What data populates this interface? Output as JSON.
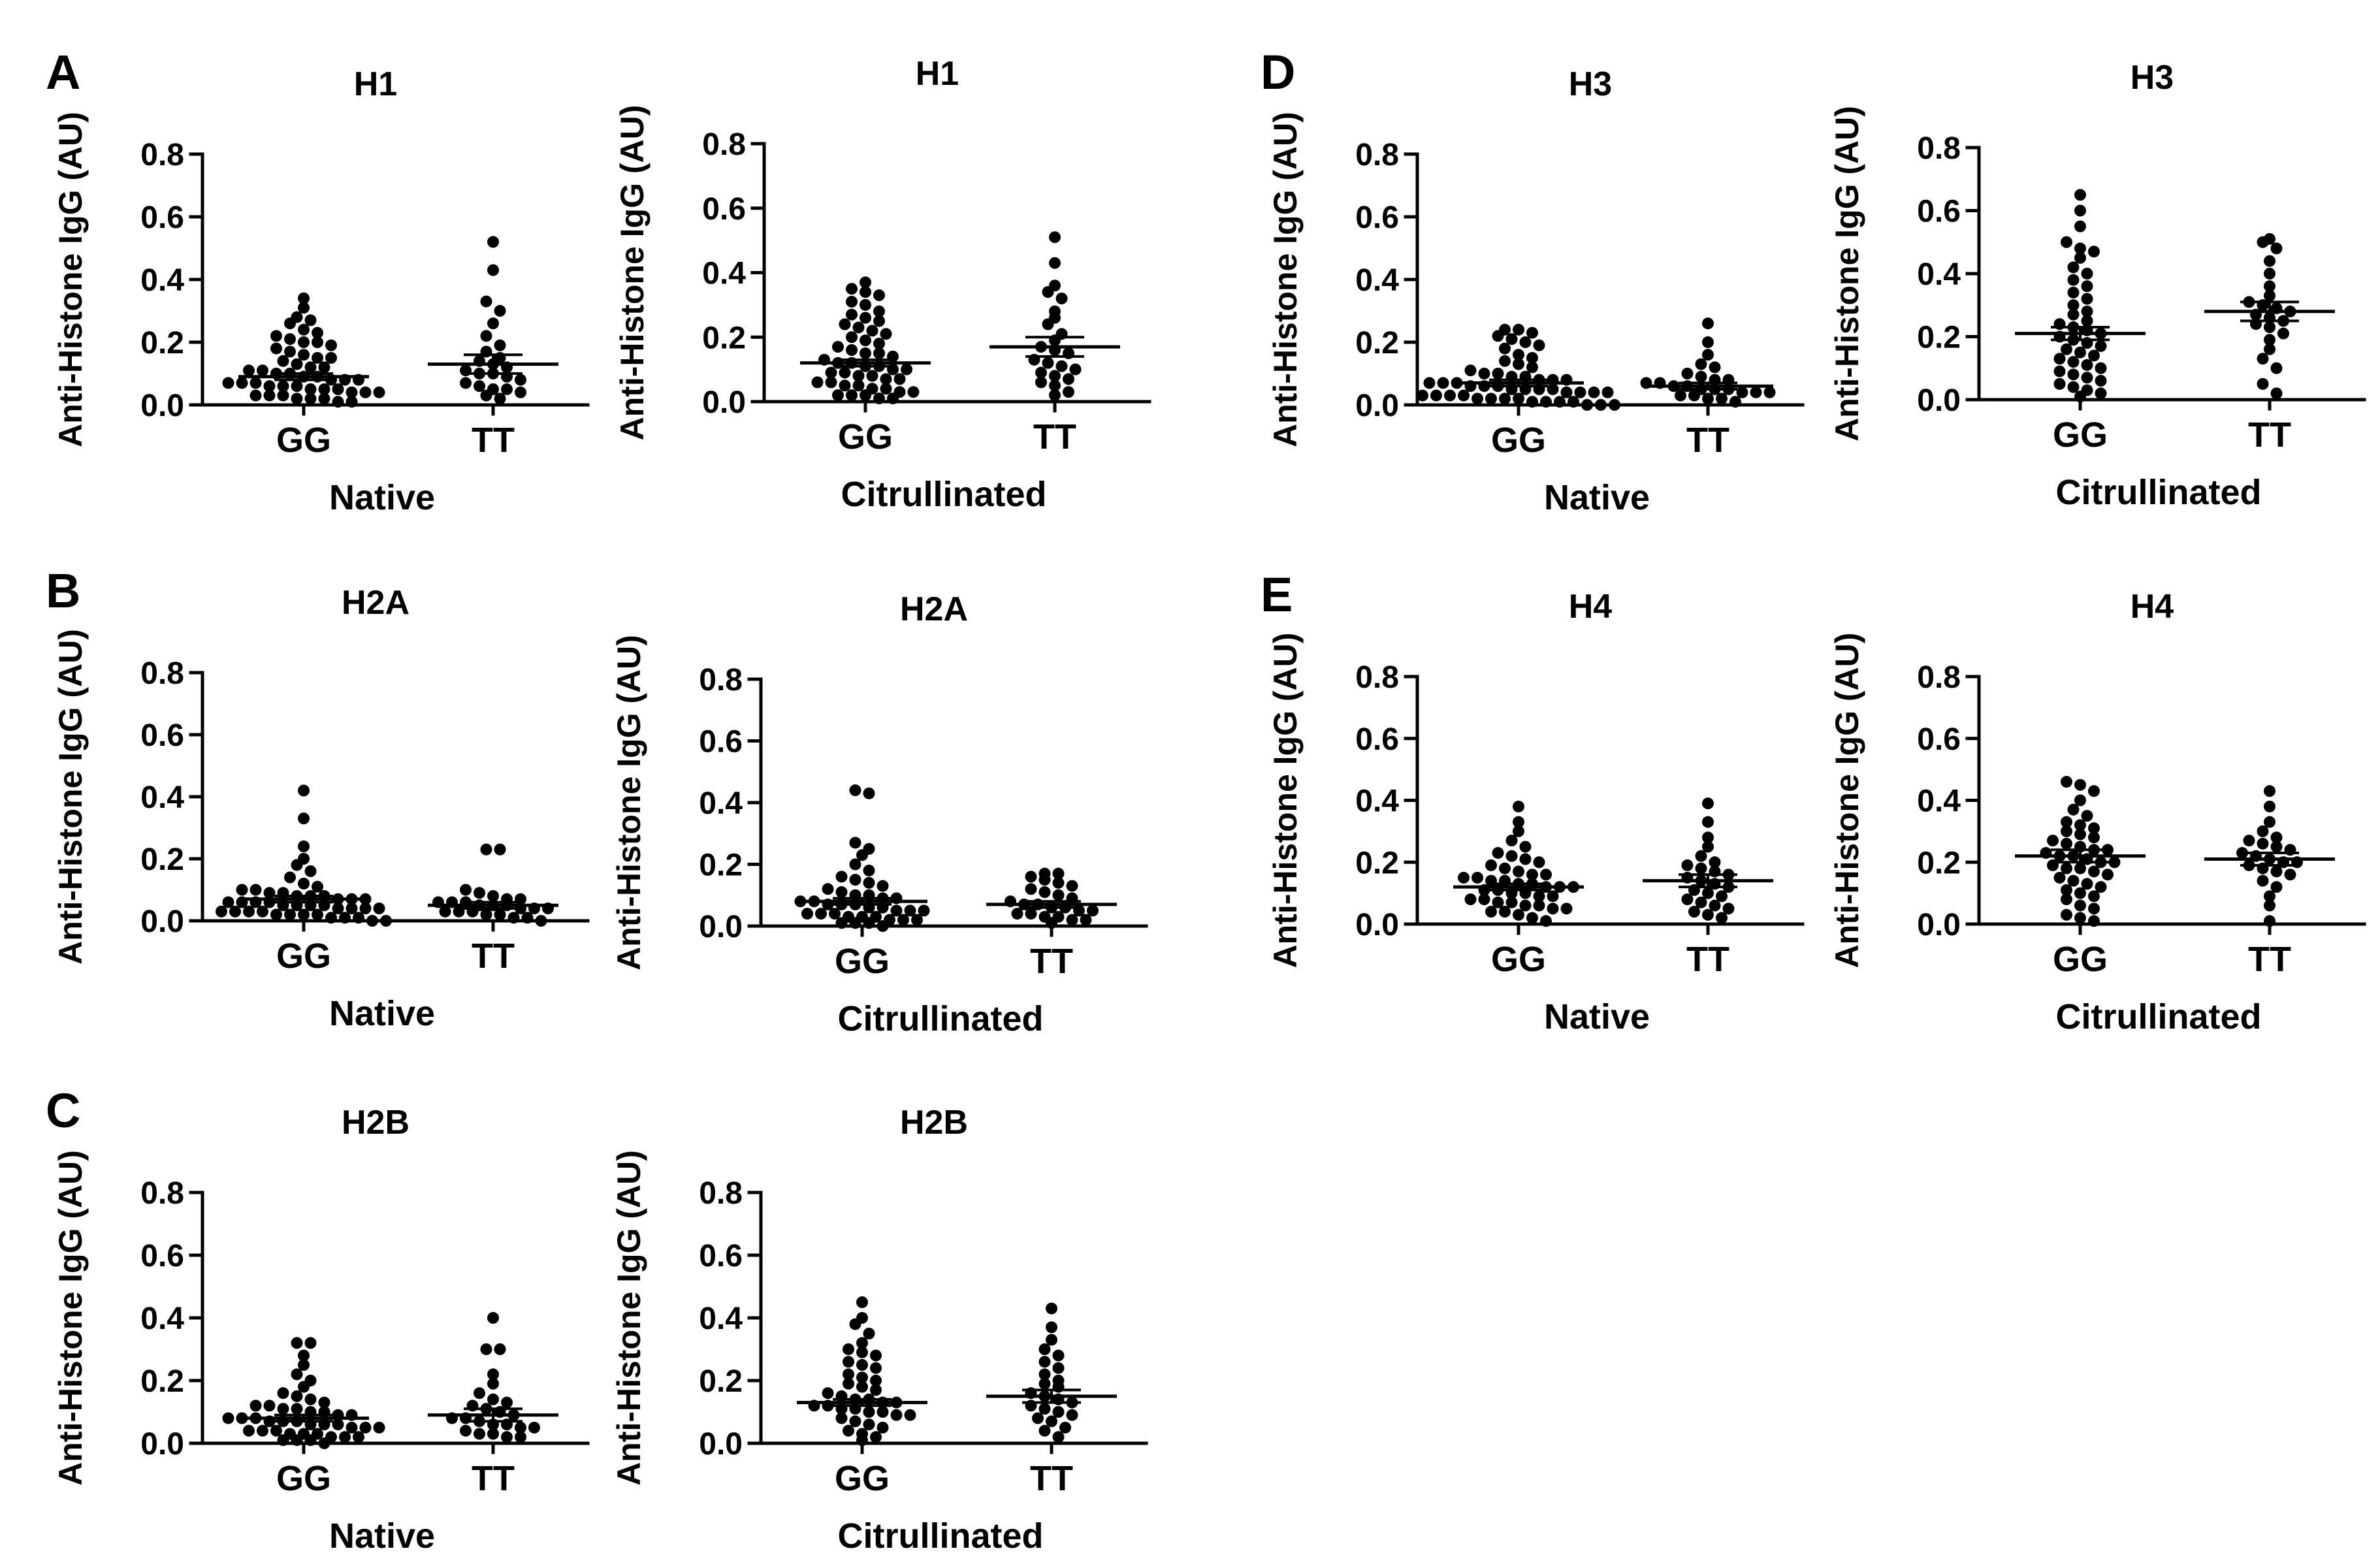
{
  "chart_data": [
    {
      "panel": "A",
      "type": "scatter",
      "title": "H1",
      "xlabel": "Native",
      "ylabel": "Anti-Histone IgG (AU)",
      "ylim": [
        0,
        0.8
      ],
      "yticks": [
        "0.0",
        "0.2",
        "0.4",
        "0.6",
        "0.8"
      ],
      "categories": [
        "GG",
        "TT"
      ],
      "series": [
        {
          "category": "GG",
          "mean": 0.09,
          "sem": 0.01,
          "values": [
            0.34,
            0.31,
            0.28,
            0.27,
            0.26,
            0.24,
            0.23,
            0.22,
            0.21,
            0.2,
            0.2,
            0.19,
            0.18,
            0.17,
            0.16,
            0.15,
            0.15,
            0.14,
            0.13,
            0.12,
            0.12,
            0.11,
            0.11,
            0.1,
            0.1,
            0.09,
            0.09,
            0.08,
            0.08,
            0.08,
            0.07,
            0.07,
            0.07,
            0.06,
            0.06,
            0.06,
            0.05,
            0.05,
            0.05,
            0.04,
            0.04,
            0.04,
            0.03,
            0.03,
            0.03,
            0.02,
            0.02,
            0.02,
            0.01,
            0.01
          ]
        },
        {
          "category": "TT",
          "mean": 0.13,
          "sem": 0.03,
          "values": [
            0.52,
            0.43,
            0.33,
            0.3,
            0.26,
            0.22,
            0.19,
            0.17,
            0.15,
            0.14,
            0.13,
            0.12,
            0.11,
            0.1,
            0.1,
            0.09,
            0.08,
            0.07,
            0.06,
            0.05,
            0.05,
            0.04,
            0.03,
            0.02
          ]
        }
      ]
    },
    {
      "panel": "",
      "type": "scatter",
      "title": "H1",
      "xlabel": "Citrullinated",
      "ylabel": "Anti-Histone IgG (AU)",
      "ylim": [
        0,
        0.8
      ],
      "yticks": [
        "0.0",
        "0.2",
        "0.4",
        "0.6",
        "0.8"
      ],
      "categories": [
        "GG",
        "TT"
      ],
      "series": [
        {
          "category": "GG",
          "mean": 0.12,
          "sem": 0.01,
          "values": [
            0.37,
            0.35,
            0.34,
            0.33,
            0.31,
            0.3,
            0.28,
            0.27,
            0.26,
            0.25,
            0.24,
            0.23,
            0.22,
            0.21,
            0.2,
            0.19,
            0.18,
            0.17,
            0.16,
            0.15,
            0.15,
            0.14,
            0.13,
            0.12,
            0.12,
            0.11,
            0.11,
            0.1,
            0.1,
            0.09,
            0.09,
            0.08,
            0.08,
            0.07,
            0.07,
            0.06,
            0.06,
            0.05,
            0.05,
            0.04,
            0.04,
            0.03,
            0.03,
            0.02,
            0.02,
            0.02,
            0.01,
            0.01
          ]
        },
        {
          "category": "TT",
          "mean": 0.17,
          "sem": 0.03,
          "values": [
            0.51,
            0.43,
            0.36,
            0.34,
            0.32,
            0.28,
            0.26,
            0.24,
            0.21,
            0.19,
            0.17,
            0.16,
            0.15,
            0.13,
            0.12,
            0.11,
            0.1,
            0.09,
            0.08,
            0.07,
            0.06,
            0.05,
            0.03,
            0.02
          ]
        }
      ]
    },
    {
      "panel": "D",
      "type": "scatter",
      "title": "H3",
      "xlabel": "Native",
      "ylabel": "Anti-Histone IgG (AU)",
      "ylim": [
        0,
        0.8
      ],
      "yticks": [
        "0.0",
        "0.2",
        "0.4",
        "0.6",
        "0.8"
      ],
      "categories": [
        "GG",
        "TT"
      ],
      "series": [
        {
          "category": "GG",
          "mean": 0.07,
          "sem": 0.01,
          "values": [
            0.24,
            0.24,
            0.23,
            0.22,
            0.21,
            0.2,
            0.19,
            0.18,
            0.16,
            0.15,
            0.14,
            0.13,
            0.12,
            0.11,
            0.1,
            0.1,
            0.09,
            0.09,
            0.08,
            0.08,
            0.08,
            0.07,
            0.07,
            0.07,
            0.06,
            0.06,
            0.06,
            0.05,
            0.05,
            0.05,
            0.05,
            0.04,
            0.04,
            0.04,
            0.04,
            0.03,
            0.03,
            0.03,
            0.03,
            0.02,
            0.02,
            0.02,
            0.02,
            0.01,
            0.01,
            0.01,
            0.01,
            0.0,
            0.0,
            0.0
          ]
        },
        {
          "category": "TT",
          "mean": 0.06,
          "sem": 0.01,
          "values": [
            0.26,
            0.2,
            0.16,
            0.13,
            0.12,
            0.1,
            0.09,
            0.08,
            0.08,
            0.07,
            0.07,
            0.06,
            0.06,
            0.05,
            0.05,
            0.05,
            0.04,
            0.04,
            0.04,
            0.03,
            0.03,
            0.02,
            0.02,
            0.01
          ]
        }
      ]
    },
    {
      "panel": "",
      "type": "scatter",
      "title": "H3",
      "xlabel": "Citrullinated",
      "ylabel": "Anti-Histone IgG (AU)",
      "ylim": [
        0,
        0.8
      ],
      "yticks": [
        "0.0",
        "0.2",
        "0.4",
        "0.6",
        "0.8"
      ],
      "categories": [
        "GG",
        "TT"
      ],
      "series": [
        {
          "category": "GG",
          "mean": 0.21,
          "sem": 0.02,
          "values": [
            0.65,
            0.6,
            0.55,
            0.5,
            0.48,
            0.47,
            0.45,
            0.42,
            0.4,
            0.38,
            0.36,
            0.34,
            0.32,
            0.3,
            0.28,
            0.27,
            0.25,
            0.24,
            0.23,
            0.22,
            0.21,
            0.2,
            0.19,
            0.18,
            0.17,
            0.16,
            0.15,
            0.14,
            0.13,
            0.12,
            0.11,
            0.1,
            0.09,
            0.08,
            0.07,
            0.06,
            0.05,
            0.04,
            0.03,
            0.02,
            0.01
          ]
        },
        {
          "category": "TT",
          "mean": 0.28,
          "sem": 0.03,
          "values": [
            0.51,
            0.5,
            0.48,
            0.44,
            0.4,
            0.36,
            0.33,
            0.31,
            0.3,
            0.29,
            0.28,
            0.27,
            0.26,
            0.25,
            0.24,
            0.23,
            0.21,
            0.19,
            0.16,
            0.13,
            0.1,
            0.05,
            0.02
          ]
        }
      ]
    },
    {
      "panel": "B",
      "type": "scatter",
      "title": "H2A",
      "xlabel": "Native",
      "ylabel": "Anti-Histone IgG (AU)",
      "ylim": [
        0,
        0.8
      ],
      "yticks": [
        "0.0",
        "0.2",
        "0.4",
        "0.6",
        "0.8"
      ],
      "categories": [
        "GG",
        "TT"
      ],
      "series": [
        {
          "category": "GG",
          "mean": 0.07,
          "sem": 0.01,
          "values": [
            0.42,
            0.33,
            0.24,
            0.2,
            0.18,
            0.16,
            0.14,
            0.12,
            0.11,
            0.1,
            0.1,
            0.09,
            0.09,
            0.08,
            0.08,
            0.08,
            0.07,
            0.07,
            0.07,
            0.06,
            0.06,
            0.06,
            0.06,
            0.05,
            0.05,
            0.05,
            0.05,
            0.04,
            0.04,
            0.04,
            0.04,
            0.03,
            0.03,
            0.03,
            0.03,
            0.02,
            0.02,
            0.02,
            0.02,
            0.01,
            0.01,
            0.01,
            0.0,
            0.0
          ]
        },
        {
          "category": "TT",
          "mean": 0.05,
          "sem": 0.01,
          "values": [
            0.23,
            0.23,
            0.1,
            0.09,
            0.08,
            0.07,
            0.07,
            0.06,
            0.06,
            0.06,
            0.05,
            0.05,
            0.05,
            0.04,
            0.04,
            0.04,
            0.03,
            0.03,
            0.03,
            0.02,
            0.02,
            0.01,
            0.01,
            0.0
          ]
        }
      ]
    },
    {
      "panel": "",
      "type": "scatter",
      "title": "H2A",
      "xlabel": "Citrullinated",
      "ylabel": "Anti-Histone IgG (AU)",
      "ylim": [
        0,
        0.8
      ],
      "yticks": [
        "0.0",
        "0.2",
        "0.4",
        "0.6",
        "0.8"
      ],
      "categories": [
        "GG",
        "TT"
      ],
      "series": [
        {
          "category": "GG",
          "mean": 0.08,
          "sem": 0.01,
          "values": [
            0.44,
            0.43,
            0.27,
            0.25,
            0.23,
            0.2,
            0.18,
            0.16,
            0.15,
            0.14,
            0.13,
            0.12,
            0.11,
            0.1,
            0.1,
            0.09,
            0.09,
            0.08,
            0.08,
            0.07,
            0.07,
            0.07,
            0.06,
            0.06,
            0.05,
            0.05,
            0.05,
            0.04,
            0.04,
            0.04,
            0.03,
            0.03,
            0.03,
            0.02,
            0.02,
            0.02,
            0.01,
            0.01,
            0.01,
            0.0
          ]
        },
        {
          "category": "TT",
          "mean": 0.07,
          "sem": 0.01,
          "values": [
            0.17,
            0.17,
            0.16,
            0.15,
            0.14,
            0.13,
            0.12,
            0.11,
            0.1,
            0.09,
            0.08,
            0.07,
            0.07,
            0.06,
            0.06,
            0.05,
            0.05,
            0.04,
            0.04,
            0.03,
            0.03,
            0.02,
            0.02,
            0.01
          ]
        }
      ]
    },
    {
      "panel": "E",
      "type": "scatter",
      "title": "H4",
      "xlabel": "Native",
      "ylabel": "Anti-Histone IgG (AU)",
      "ylim": [
        0,
        0.8
      ],
      "yticks": [
        "0.0",
        "0.2",
        "0.4",
        "0.6",
        "0.8"
      ],
      "categories": [
        "GG",
        "TT"
      ],
      "series": [
        {
          "category": "GG",
          "mean": 0.12,
          "sem": 0.01,
          "values": [
            0.38,
            0.33,
            0.3,
            0.27,
            0.25,
            0.23,
            0.22,
            0.21,
            0.2,
            0.19,
            0.18,
            0.17,
            0.16,
            0.16,
            0.15,
            0.15,
            0.14,
            0.14,
            0.13,
            0.13,
            0.12,
            0.12,
            0.12,
            0.11,
            0.11,
            0.1,
            0.1,
            0.09,
            0.09,
            0.08,
            0.08,
            0.07,
            0.07,
            0.06,
            0.06,
            0.05,
            0.05,
            0.04,
            0.04,
            0.03,
            0.02,
            0.01
          ]
        },
        {
          "category": "TT",
          "mean": 0.14,
          "sem": 0.02,
          "values": [
            0.39,
            0.33,
            0.28,
            0.25,
            0.22,
            0.2,
            0.19,
            0.18,
            0.17,
            0.16,
            0.15,
            0.14,
            0.13,
            0.12,
            0.11,
            0.1,
            0.09,
            0.08,
            0.07,
            0.06,
            0.05,
            0.04,
            0.03,
            0.02
          ]
        }
      ]
    },
    {
      "panel": "",
      "type": "scatter",
      "title": "H4",
      "xlabel": "Citrullinated",
      "ylabel": "Anti-Histone IgG (AU)",
      "ylim": [
        0,
        0.8
      ],
      "yticks": [
        "0.0",
        "0.2",
        "0.4",
        "0.6",
        "0.8"
      ],
      "categories": [
        "GG",
        "TT"
      ],
      "series": [
        {
          "category": "GG",
          "mean": 0.22,
          "sem": 0.02,
          "values": [
            0.46,
            0.45,
            0.43,
            0.4,
            0.37,
            0.35,
            0.33,
            0.32,
            0.31,
            0.3,
            0.29,
            0.28,
            0.27,
            0.26,
            0.25,
            0.24,
            0.24,
            0.23,
            0.22,
            0.22,
            0.21,
            0.2,
            0.2,
            0.19,
            0.18,
            0.18,
            0.17,
            0.16,
            0.15,
            0.14,
            0.13,
            0.12,
            0.11,
            0.1,
            0.09,
            0.08,
            0.06,
            0.05,
            0.03,
            0.02,
            0.01
          ]
        },
        {
          "category": "TT",
          "mean": 0.21,
          "sem": 0.02,
          "values": [
            0.43,
            0.38,
            0.33,
            0.3,
            0.28,
            0.27,
            0.26,
            0.25,
            0.24,
            0.23,
            0.22,
            0.21,
            0.2,
            0.2,
            0.19,
            0.18,
            0.17,
            0.16,
            0.14,
            0.12,
            0.09,
            0.06,
            0.01
          ]
        }
      ]
    },
    {
      "panel": "C",
      "type": "scatter",
      "title": "H2B",
      "xlabel": "Native",
      "ylabel": "Anti-Histone IgG (AU)",
      "ylim": [
        0,
        0.8
      ],
      "yticks": [
        "0.0",
        "0.2",
        "0.4",
        "0.6",
        "0.8"
      ],
      "categories": [
        "GG",
        "TT"
      ],
      "series": [
        {
          "category": "GG",
          "mean": 0.08,
          "sem": 0.01,
          "values": [
            0.32,
            0.32,
            0.28,
            0.25,
            0.22,
            0.2,
            0.18,
            0.16,
            0.15,
            0.14,
            0.13,
            0.12,
            0.12,
            0.11,
            0.11,
            0.1,
            0.1,
            0.09,
            0.09,
            0.08,
            0.08,
            0.08,
            0.07,
            0.07,
            0.07,
            0.06,
            0.06,
            0.06,
            0.05,
            0.05,
            0.05,
            0.04,
            0.04,
            0.04,
            0.03,
            0.03,
            0.03,
            0.02,
            0.02,
            0.02,
            0.01,
            0.01,
            0.01,
            0.0
          ]
        },
        {
          "category": "TT",
          "mean": 0.09,
          "sem": 0.02,
          "values": [
            0.4,
            0.3,
            0.3,
            0.22,
            0.19,
            0.16,
            0.14,
            0.13,
            0.12,
            0.11,
            0.1,
            0.09,
            0.08,
            0.08,
            0.07,
            0.06,
            0.06,
            0.05,
            0.05,
            0.04,
            0.03,
            0.03,
            0.02,
            0.02
          ]
        }
      ]
    },
    {
      "panel": "",
      "type": "scatter",
      "title": "H2B",
      "xlabel": "Citrullinated",
      "ylabel": "Anti-Histone IgG (AU)",
      "ylim": [
        0,
        0.8
      ],
      "yticks": [
        "0.0",
        "0.2",
        "0.4",
        "0.6",
        "0.8"
      ],
      "categories": [
        "GG",
        "TT"
      ],
      "series": [
        {
          "category": "GG",
          "mean": 0.13,
          "sem": 0.01,
          "values": [
            0.45,
            0.4,
            0.38,
            0.35,
            0.32,
            0.3,
            0.29,
            0.28,
            0.26,
            0.25,
            0.24,
            0.22,
            0.21,
            0.2,
            0.19,
            0.18,
            0.17,
            0.16,
            0.15,
            0.14,
            0.14,
            0.13,
            0.13,
            0.12,
            0.12,
            0.11,
            0.11,
            0.1,
            0.1,
            0.09,
            0.09,
            0.08,
            0.07,
            0.06,
            0.05,
            0.04,
            0.03,
            0.02,
            0.01
          ]
        },
        {
          "category": "TT",
          "mean": 0.15,
          "sem": 0.02,
          "values": [
            0.43,
            0.37,
            0.33,
            0.3,
            0.28,
            0.26,
            0.24,
            0.22,
            0.2,
            0.19,
            0.18,
            0.16,
            0.15,
            0.14,
            0.13,
            0.12,
            0.11,
            0.1,
            0.09,
            0.08,
            0.07,
            0.05,
            0.04,
            0.02
          ]
        }
      ]
    }
  ]
}
